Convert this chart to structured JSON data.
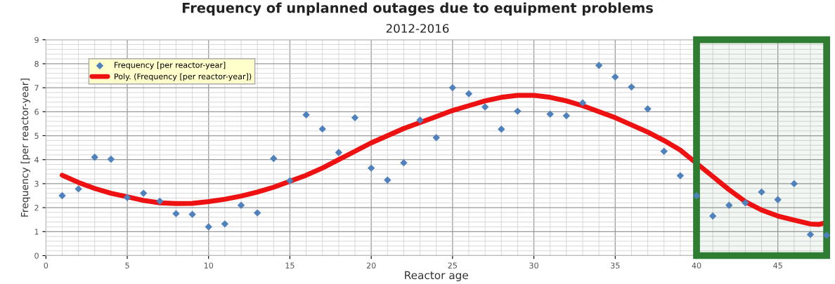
{
  "chart_data": {
    "type": "scatter",
    "title": "Frequency of unplanned outages due to equipment problems",
    "subtitle": "2012-2016",
    "xlabel": "Reactor age",
    "ylabel": "Frequency [per reactor-year]",
    "xlim": [
      0,
      48
    ],
    "xticks": [
      0,
      5,
      10,
      15,
      20,
      25,
      30,
      35,
      40,
      45
    ],
    "ylim": [
      0,
      9
    ],
    "yticks": [
      0,
      1,
      2,
      3,
      4,
      5,
      6,
      7,
      8,
      9
    ],
    "grid": true,
    "legend": "top left",
    "x": [
      1,
      2,
      3,
      4,
      5,
      6,
      7,
      8,
      9,
      10,
      11,
      12,
      13,
      14,
      15,
      16,
      17,
      18,
      19,
      20,
      21,
      22,
      23,
      24,
      25,
      26,
      27,
      28,
      29,
      30,
      31,
      32,
      33,
      34,
      35,
      36,
      37,
      38,
      39,
      40,
      41,
      42,
      43,
      44,
      45,
      46,
      47,
      48
    ],
    "series": [
      {
        "name": "Frequency [per reactor-year]",
        "color": "#4f81bd",
        "marker": "diamond",
        "values": [
          2.5,
          2.78,
          4.1,
          4.02,
          2.42,
          2.6,
          2.27,
          1.75,
          1.72,
          1.2,
          1.32,
          2.1,
          1.78,
          4.05,
          3.12,
          5.87,
          5.28,
          4.3,
          5.75,
          3.65,
          3.15,
          3.87,
          5.65,
          4.92,
          7.0,
          6.75,
          6.2,
          5.27,
          6.02,
          null,
          5.9,
          5.83,
          6.37,
          7.93,
          7.45,
          7.03,
          6.12,
          4.35,
          3.33,
          2.5,
          1.65,
          2.1,
          2.2,
          2.65,
          2.33,
          3.0,
          0.88,
          0.85
        ]
      },
      {
        "name": "Poly. (Frequency [per reactor-year])",
        "type": "line",
        "color": "#ee1111",
        "marker": "none",
        "line_style": "solid",
        "x": [
          1,
          2,
          3,
          4,
          5,
          6,
          7,
          8,
          9,
          10,
          11,
          12,
          13,
          14,
          15,
          16,
          17,
          18,
          19,
          20,
          21,
          22,
          23,
          24,
          25,
          26,
          27,
          28,
          29,
          30,
          31,
          32,
          33,
          34,
          35,
          36,
          37,
          38,
          39,
          40,
          41,
          42,
          43,
          44,
          45,
          46,
          47,
          47.5,
          48
        ],
        "values": [
          3.35,
          3.05,
          2.8,
          2.6,
          2.45,
          2.3,
          2.2,
          2.17,
          2.18,
          2.25,
          2.35,
          2.48,
          2.65,
          2.85,
          3.1,
          3.35,
          3.65,
          4.0,
          4.35,
          4.7,
          5.0,
          5.3,
          5.55,
          5.8,
          6.05,
          6.25,
          6.45,
          6.6,
          6.68,
          6.68,
          6.6,
          6.45,
          6.25,
          6.0,
          5.75,
          5.45,
          5.15,
          4.8,
          4.4,
          3.85,
          3.3,
          2.75,
          2.25,
          1.9,
          1.65,
          1.48,
          1.32,
          1.3,
          1.38
        ]
      }
    ],
    "bands": [
      {
        "axis": "x",
        "from": 40,
        "to": 48,
        "color": "#2e7d32"
      }
    ]
  }
}
